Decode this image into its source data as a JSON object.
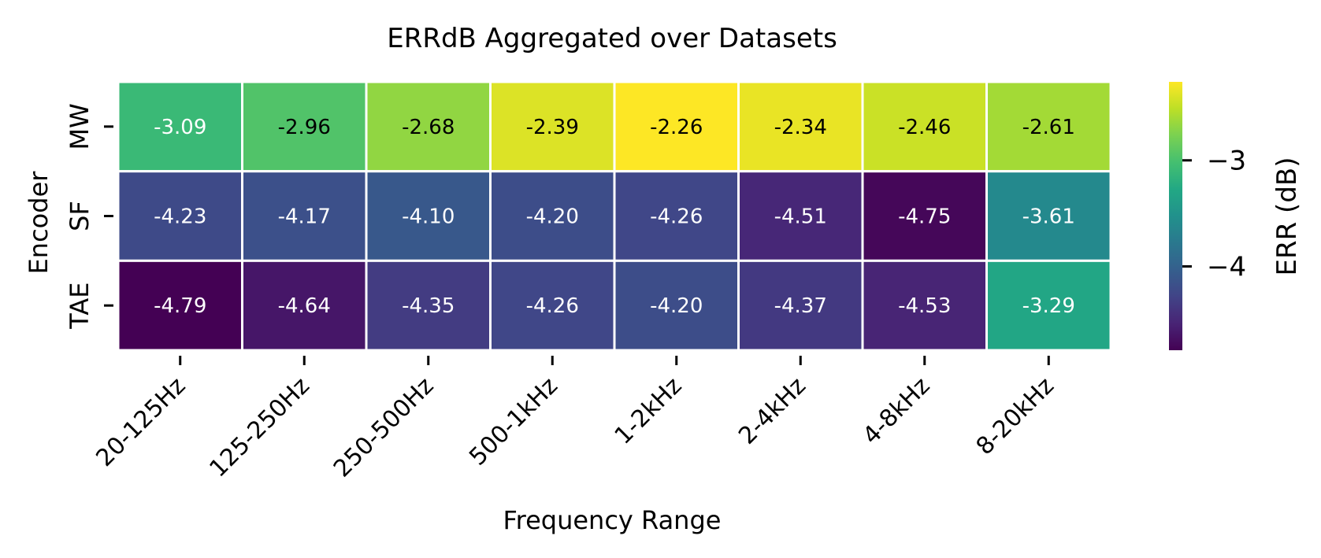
{
  "chart_data": {
    "type": "heatmap",
    "title": "ERRdB Aggregated over Datasets",
    "xlabel": "Frequency Range",
    "ylabel": "Encoder",
    "x_categories": [
      "20-125Hz",
      "125-250Hz",
      "250-500Hz",
      "500-1kHz",
      "1-2kHz",
      "2-4kHz",
      "4-8kHz",
      "8-20kHz"
    ],
    "y_categories": [
      "MW",
      "SF",
      "TAE"
    ],
    "values": [
      [
        -3.09,
        -2.96,
        -2.68,
        -2.39,
        -2.26,
        -2.34,
        -2.46,
        -2.61
      ],
      [
        -4.23,
        -4.17,
        -4.1,
        -4.2,
        -4.26,
        -4.51,
        -4.75,
        -3.61
      ],
      [
        -4.79,
        -4.64,
        -4.35,
        -4.26,
        -4.2,
        -4.37,
        -4.53,
        -3.29
      ]
    ],
    "value_labels": [
      [
        "-3.09",
        "-2.96",
        "-2.68",
        "-2.39",
        "-2.26",
        "-2.34",
        "-2.46",
        "-2.61"
      ],
      [
        "-4.23",
        "-4.17",
        "-4.10",
        "-4.20",
        "-4.26",
        "-4.51",
        "-4.75",
        "-3.61"
      ],
      [
        "-4.79",
        "-4.64",
        "-4.35",
        "-4.26",
        "-4.20",
        "-4.37",
        "-4.53",
        "-3.29"
      ]
    ],
    "colormap": "viridis",
    "color_range": [
      -4.79,
      -2.26
    ],
    "colorbar": {
      "label": "ERR (dB)",
      "ticks": [
        -3,
        -4
      ],
      "tick_labels": [
        "−3",
        "−4"
      ]
    }
  }
}
